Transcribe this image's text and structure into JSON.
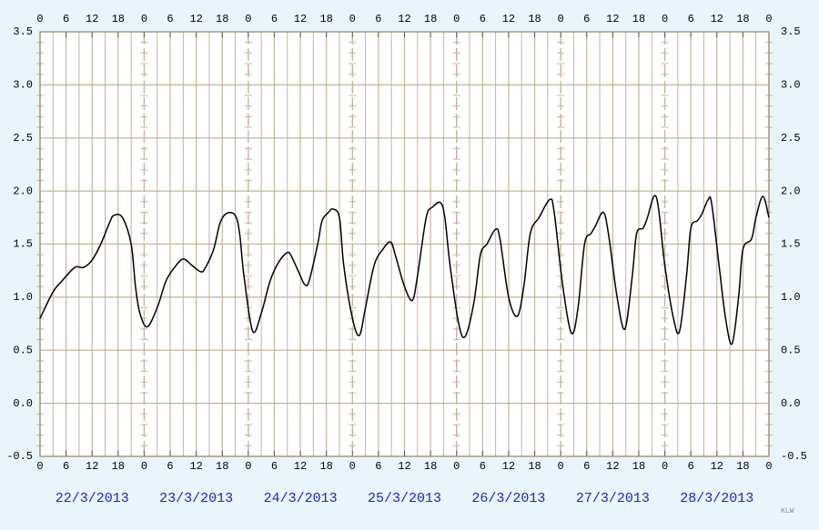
{
  "chart_data": {
    "type": "line",
    "x": [
      0,
      3,
      5,
      8,
      10,
      12,
      14,
      16,
      17,
      19,
      21,
      22,
      23,
      24.7,
      27,
      29,
      31,
      33,
      35,
      37,
      38,
      40,
      41.5,
      43,
      45,
      46,
      47,
      49,
      51,
      53,
      55,
      57,
      58,
      60,
      61,
      62,
      64,
      65,
      66.5,
      67.5,
      69,
      70,
      72,
      73.6,
      75,
      77,
      79,
      80.8,
      82,
      84,
      85.8,
      87,
      89,
      90.5,
      92.3,
      93.3,
      94.5,
      96.5,
      98,
      100,
      101.5,
      103,
      105,
      106,
      108,
      110,
      111.5,
      113,
      115,
      117.5,
      118.5,
      120.5,
      122.5,
      124,
      125.5,
      127,
      128,
      129.8,
      131,
      133,
      134.8,
      136.5,
      137.5,
      139,
      140,
      141.5,
      142.5,
      144,
      146,
      147.4,
      149,
      150,
      151.5,
      152.5,
      154,
      154.8,
      156.5,
      158,
      159.5,
      161,
      162,
      164,
      165,
      166.6,
      168
    ],
    "series": [
      {
        "color": "#000000",
        "values": [
          0.8,
          1.05,
          1.15,
          1.28,
          1.28,
          1.35,
          1.5,
          1.7,
          1.77,
          1.75,
          1.5,
          1.1,
          0.85,
          0.72,
          0.9,
          1.15,
          1.28,
          1.36,
          1.3,
          1.24,
          1.27,
          1.45,
          1.7,
          1.79,
          1.77,
          1.6,
          1.2,
          0.68,
          0.85,
          1.15,
          1.33,
          1.42,
          1.38,
          1.2,
          1.12,
          1.15,
          1.5,
          1.72,
          1.8,
          1.83,
          1.75,
          1.3,
          0.8,
          0.64,
          0.9,
          1.3,
          1.45,
          1.52,
          1.38,
          1.1,
          0.97,
          1.2,
          1.75,
          1.85,
          1.89,
          1.75,
          1.3,
          0.75,
          0.63,
          0.95,
          1.4,
          1.5,
          1.64,
          1.55,
          1.0,
          0.82,
          1.1,
          1.6,
          1.75,
          1.92,
          1.8,
          1.1,
          0.66,
          0.9,
          1.5,
          1.6,
          1.67,
          1.8,
          1.6,
          1.0,
          0.7,
          1.2,
          1.6,
          1.65,
          1.75,
          1.95,
          1.85,
          1.3,
          0.8,
          0.68,
          1.2,
          1.65,
          1.72,
          1.78,
          1.92,
          1.88,
          1.3,
          0.8,
          0.56,
          1.0,
          1.45,
          1.55,
          1.75,
          1.95,
          1.75
        ]
      }
    ],
    "xlim": [
      0,
      168
    ],
    "xticks": [
      0,
      {
        "value": 6,
        "label": "6"
      },
      {
        "value": 12,
        "label": "12"
      },
      {
        "value": 18,
        "label": "18"
      },
      {
        "value": 24,
        "label": "0"
      },
      {
        "value": 30,
        "label": "6"
      },
      {
        "value": 36,
        "label": "12"
      },
      {
        "value": 42,
        "label": "18"
      },
      {
        "value": 48,
        "label": "0"
      },
      {
        "value": 54,
        "label": "6"
      },
      {
        "value": 60,
        "label": "12"
      },
      {
        "value": 66,
        "label": "18"
      },
      {
        "value": 72,
        "label": "0"
      },
      {
        "value": 78,
        "label": "6"
      },
      {
        "value": 84,
        "label": "12"
      },
      {
        "value": 90,
        "label": "18"
      },
      {
        "value": 96,
        "label": "0"
      },
      {
        "value": 102,
        "label": "6"
      },
      {
        "value": 108,
        "label": "12"
      },
      {
        "value": 114,
        "label": "18"
      },
      {
        "value": 120,
        "label": "0"
      },
      {
        "value": 126,
        "label": "6"
      },
      {
        "value": 132,
        "label": "12"
      },
      {
        "value": 138,
        "label": "18"
      },
      {
        "value": 144,
        "label": "0"
      },
      {
        "value": 150,
        "label": "6"
      },
      {
        "value": 156,
        "label": "12"
      },
      {
        "value": 162,
        "label": "18"
      },
      {
        "value": 168,
        "label": "0"
      }
    ],
    "ylim": [
      -0.5,
      3.5
    ],
    "yticks": [
      -0.5,
      {
        "value": 0,
        "label": "0.0"
      },
      0.5,
      {
        "value": 1,
        "label": "1.0"
      },
      1.5,
      {
        "value": 2,
        "label": "2.0"
      },
      2.5,
      {
        "value": 3,
        "label": "3.0"
      },
      3.5
    ],
    "date_labels": [
      "22/3/2013",
      "23/3/2013",
      "24/3/2013",
      "25/3/2013",
      "26/3/2013",
      "27/3/2013",
      "28/3/2013"
    ],
    "credit": "KLW",
    "grid": true
  }
}
